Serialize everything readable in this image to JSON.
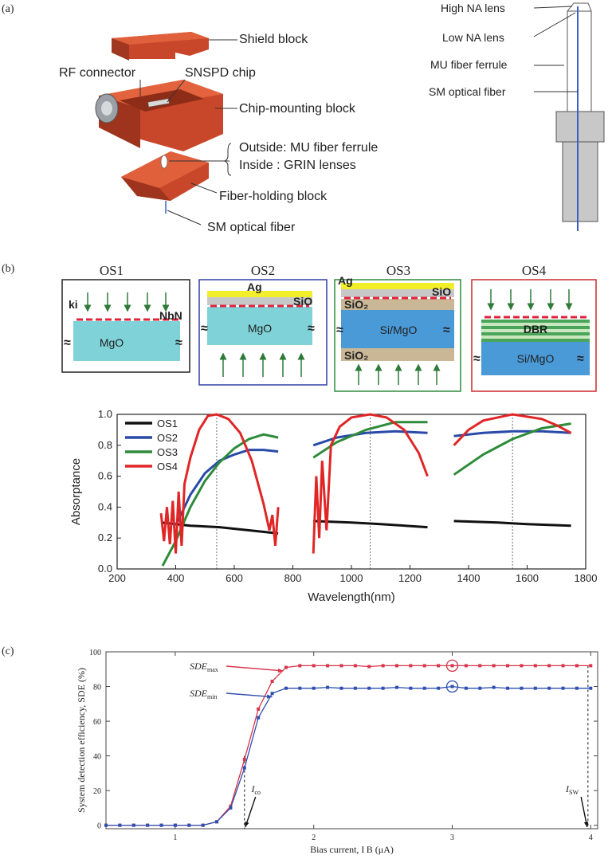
{
  "panels": {
    "a": {
      "tag": "(a)",
      "labels": {
        "shield_block": "Shield block",
        "rf_connector": "RF connector",
        "snspd_chip": "SNSPD chip",
        "chip_mounting_block": "Chip-mounting block",
        "outside": "Outside: MU fiber ferrule",
        "inside": "Inside : GRIN lenses",
        "fiber_holding_block": "Fiber-holding block",
        "sm_optical_fiber": "SM optical fiber",
        "high_na_lens": "High NA lens",
        "low_na_lens": "Low NA lens",
        "mu_fiber_ferrule": "MU fiber ferrule",
        "sm_optical_fiber_right": "SM optical fiber"
      }
    },
    "b": {
      "tag": "(b)",
      "structures": [
        {
          "title": "OS1",
          "border": "#222222",
          "labels": {
            "ki": "ki",
            "nbn": "NbN",
            "substrate": "MgO"
          }
        },
        {
          "title": "OS2",
          "border": "#2f3ea8",
          "labels": {
            "ag": "Ag",
            "sio": "SiO",
            "substrate": "MgO"
          }
        },
        {
          "title": "OS3",
          "border": "#2e8b3a",
          "labels": {
            "ag": "Ag",
            "sio": "SiO",
            "sio2_top": "SiO₂",
            "substrate": "Si/MgO",
            "sio2_bottom": "SiO₂"
          }
        },
        {
          "title": "OS4",
          "border": "#cc2a2a",
          "labels": {
            "dbr": "DBR",
            "substrate": "Si/MgO"
          }
        }
      ],
      "approx_symbol": "≈"
    },
    "c": {
      "tag": "(c)",
      "annotations": {
        "sde_max": "SDE",
        "sde_max_sub": "max",
        "sde_min": "SDE",
        "sde_min_sub": "min",
        "i_co": "I",
        "i_co_sub": "co",
        "i_sw": "I",
        "i_sw_sub": "SW"
      }
    }
  },
  "chart_data": [
    {
      "type": "line",
      "panel": "b",
      "xlabel": "Wavelength(nm)",
      "ylabel": "Absorptance",
      "xlim": [
        200,
        1800
      ],
      "ylim": [
        0.0,
        1.0
      ],
      "xticks": [
        200,
        400,
        600,
        800,
        1000,
        1200,
        1400,
        1600,
        1800
      ],
      "yticks": [
        0.0,
        0.2,
        0.4,
        0.6,
        0.8,
        1.0
      ],
      "ytick_labels": [
        "0.0",
        "0.2",
        "0.4",
        "0.6",
        "0.8",
        "1.0"
      ],
      "vlines": [
        540,
        1064,
        1550
      ],
      "legend_position": "top-left",
      "series": [
        {
          "name": "OS1",
          "color": "#111111",
          "segments": [
            [
              [
                350,
                0.3
              ],
              [
                450,
                0.28
              ],
              [
                550,
                0.27
              ],
              [
                650,
                0.25
              ],
              [
                750,
                0.23
              ]
            ],
            [
              [
                870,
                0.31
              ],
              [
                1000,
                0.3
              ],
              [
                1100,
                0.29
              ],
              [
                1260,
                0.27
              ]
            ],
            [
              [
                1350,
                0.31
              ],
              [
                1500,
                0.3
              ],
              [
                1600,
                0.29
              ],
              [
                1750,
                0.28
              ]
            ]
          ]
        },
        {
          "name": "OS2",
          "color": "#2a4aa8",
          "segments": [
            [
              [
                400,
                0.28
              ],
              [
                450,
                0.48
              ],
              [
                500,
                0.62
              ],
              [
                550,
                0.7
              ],
              [
                600,
                0.74
              ],
              [
                650,
                0.77
              ],
              [
                700,
                0.77
              ],
              [
                750,
                0.76
              ]
            ],
            [
              [
                870,
                0.8
              ],
              [
                950,
                0.85
              ],
              [
                1050,
                0.88
              ],
              [
                1150,
                0.89
              ],
              [
                1260,
                0.88
              ]
            ],
            [
              [
                1350,
                0.86
              ],
              [
                1450,
                0.88
              ],
              [
                1550,
                0.89
              ],
              [
                1650,
                0.89
              ],
              [
                1750,
                0.88
              ]
            ]
          ]
        },
        {
          "name": "OS3",
          "color": "#2e8b3a",
          "segments": [
            [
              [
                355,
                0.02
              ],
              [
                400,
                0.18
              ],
              [
                450,
                0.4
              ],
              [
                500,
                0.57
              ],
              [
                550,
                0.69
              ],
              [
                600,
                0.78
              ],
              [
                650,
                0.84
              ],
              [
                700,
                0.87
              ],
              [
                750,
                0.85
              ]
            ],
            [
              [
                870,
                0.72
              ],
              [
                950,
                0.82
              ],
              [
                1050,
                0.9
              ],
              [
                1150,
                0.95
              ],
              [
                1260,
                0.95
              ]
            ],
            [
              [
                1350,
                0.61
              ],
              [
                1450,
                0.74
              ],
              [
                1550,
                0.84
              ],
              [
                1650,
                0.91
              ],
              [
                1750,
                0.94
              ]
            ]
          ]
        },
        {
          "name": "OS4",
          "color": "#e02626",
          "segments": [
            [
              [
                350,
                0.36
              ],
              [
                360,
                0.18
              ],
              [
                370,
                0.4
              ],
              [
                380,
                0.16
              ],
              [
                390,
                0.44
              ],
              [
                400,
                0.1
              ],
              [
                410,
                0.5
              ],
              [
                420,
                0.15
              ],
              [
                430,
                0.55
              ],
              [
                450,
                0.72
              ],
              [
                480,
                0.9
              ],
              [
                510,
                0.99
              ],
              [
                540,
                1.0
              ],
              [
                580,
                0.97
              ],
              [
                620,
                0.88
              ],
              [
                660,
                0.7
              ],
              [
                700,
                0.42
              ],
              [
                720,
                0.25
              ],
              [
                730,
                0.35
              ],
              [
                740,
                0.15
              ],
              [
                750,
                0.4
              ]
            ],
            [
              [
                870,
                0.1
              ],
              [
                880,
                0.6
              ],
              [
                890,
                0.2
              ],
              [
                900,
                0.7
              ],
              [
                915,
                0.25
              ],
              [
                930,
                0.8
              ],
              [
                960,
                0.92
              ],
              [
                1000,
                0.98
              ],
              [
                1064,
                1.0
              ],
              [
                1120,
                0.98
              ],
              [
                1180,
                0.9
              ],
              [
                1230,
                0.75
              ],
              [
                1260,
                0.6
              ]
            ],
            [
              [
                1350,
                0.8
              ],
              [
                1400,
                0.9
              ],
              [
                1450,
                0.96
              ],
              [
                1550,
                1.0
              ],
              [
                1650,
                0.97
              ],
              [
                1700,
                0.93
              ],
              [
                1750,
                0.88
              ]
            ]
          ]
        }
      ]
    },
    {
      "type": "line",
      "panel": "c",
      "xlabel": "Bias current, I_B (μA)",
      "ylabel": "System detection efficiency, SDE (%)",
      "xlim": [
        0.5,
        4.05
      ],
      "ylim": [
        -2,
        100
      ],
      "xticks": [
        1,
        2,
        3,
        4
      ],
      "yticks": [
        0,
        20,
        40,
        60,
        80,
        100
      ],
      "i_co": 1.5,
      "i_sw": 3.98,
      "series": [
        {
          "name": "SDE_max",
          "color": "#d8344a",
          "marker": "square",
          "x": [
            0.5,
            0.6,
            0.7,
            0.8,
            0.9,
            1.0,
            1.1,
            1.2,
            1.3,
            1.4,
            1.5,
            1.6,
            1.7,
            1.8,
            1.9,
            2.0,
            2.1,
            2.2,
            2.3,
            2.4,
            2.5,
            2.6,
            2.7,
            2.8,
            2.9,
            3.0,
            3.1,
            3.2,
            3.3,
            3.4,
            3.5,
            3.6,
            3.7,
            3.8,
            3.9,
            4.0
          ],
          "y": [
            0,
            0,
            0,
            0,
            0,
            0,
            0,
            0,
            2,
            11,
            38,
            67,
            83,
            91,
            92,
            92,
            92,
            92,
            92,
            91.5,
            92,
            92,
            92,
            92,
            92,
            92,
            92,
            92,
            92,
            92,
            92,
            92,
            92,
            92,
            92,
            92
          ],
          "highlight_x": 3.0
        },
        {
          "name": "SDE_min",
          "color": "#2f4fb0",
          "marker": "square",
          "x": [
            0.5,
            0.6,
            0.7,
            0.8,
            0.9,
            1.0,
            1.1,
            1.2,
            1.3,
            1.4,
            1.5,
            1.6,
            1.7,
            1.8,
            1.9,
            2.0,
            2.1,
            2.2,
            2.3,
            2.4,
            2.5,
            2.6,
            2.7,
            2.8,
            2.9,
            3.0,
            3.1,
            3.2,
            3.3,
            3.4,
            3.5,
            3.6,
            3.7,
            3.8,
            3.9,
            4.0
          ],
          "y": [
            0,
            0,
            0,
            0,
            0,
            0,
            0,
            0,
            2,
            10,
            33,
            62,
            76,
            79,
            79,
            79,
            79.5,
            79,
            79,
            79,
            79,
            79.5,
            79,
            79,
            79,
            80,
            79,
            79,
            79.5,
            79,
            79,
            79,
            79,
            79,
            79,
            79
          ],
          "highlight_x": 3.0
        }
      ]
    }
  ]
}
